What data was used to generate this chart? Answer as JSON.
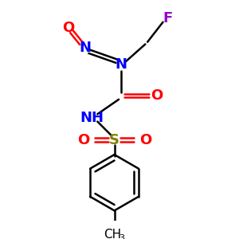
{
  "bg_color": "#ffffff",
  "atom_colors": {
    "N": "#0000ff",
    "O": "#ff0000",
    "S": "#808000",
    "F": "#9900cc",
    "C": "#000000"
  },
  "figsize": [
    3.0,
    3.0
  ],
  "dpi": 100,
  "lw": 1.8
}
